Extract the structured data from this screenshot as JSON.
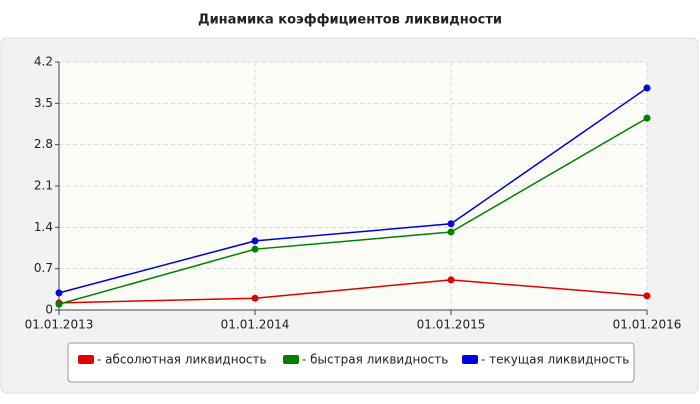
{
  "chart_data": {
    "type": "line",
    "title": "Динамика коэффициентов ликвидности",
    "categories": [
      "01.01.2013",
      "01.01.2014",
      "01.01.2015",
      "01.01.2016"
    ],
    "series": [
      {
        "name": "- абсолютная ликвидность",
        "color": "#e00000",
        "values": [
          0.12,
          0.2,
          0.51,
          0.24
        ]
      },
      {
        "name": "- быстрая ликвидность",
        "color": "#008000",
        "values": [
          0.1,
          1.03,
          1.32,
          3.25
        ]
      },
      {
        "name": "- текущая ликвидность",
        "color": "#0000e0",
        "values": [
          0.29,
          1.17,
          1.46,
          3.76
        ]
      }
    ],
    "ylim": [
      0,
      4.2
    ],
    "yticks": [
      0,
      0.7,
      1.4,
      2.1,
      2.8,
      3.5,
      4.2
    ],
    "grid": true,
    "legend": "bottom"
  }
}
